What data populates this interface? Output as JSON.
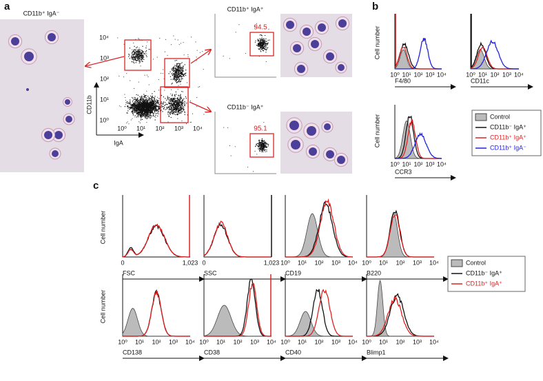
{
  "figure": {
    "log_ticks": [
      "10⁰",
      "10¹",
      "10²",
      "10³",
      "10⁴"
    ],
    "a": {
      "label": "a",
      "micrograph_title": "CD11b⁺ IgA⁻",
      "dot_plot": {
        "y_axis": "CD11b",
        "x_axis": "IgA"
      },
      "sorted": [
        {
          "title": "CD11b⁺ IgA⁺",
          "percent": "94.5"
        },
        {
          "title": "CD11b⁻ IgA⁺",
          "percent": "95.1"
        }
      ]
    },
    "b": {
      "label": "b",
      "y_axis": "Cell number",
      "markers": [
        "F4/80",
        "CD11c",
        "CCR3"
      ],
      "legend": [
        "Control",
        "CD11b⁻ IgA⁺",
        "CD11b⁺ IgA⁺",
        "CD11b⁺ IgA⁻"
      ]
    },
    "c": {
      "label": "c",
      "y_axis": "Cell number",
      "linear_ticks": [
        "0",
        "1,023"
      ],
      "markers": [
        "FSC",
        "SSC",
        "CD19",
        "B220",
        "CD138",
        "CD38",
        "CD40",
        "Blimp1"
      ],
      "legend": [
        "Control",
        "CD11b⁻ IgA⁺",
        "CD11b⁺ IgA⁺"
      ]
    }
  }
}
